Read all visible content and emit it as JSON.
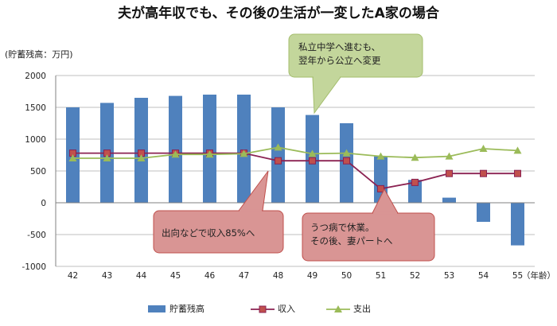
{
  "chart_data": {
    "type": "bar",
    "title": "夫が高年収でも、その後の生活が一変したA家の場合",
    "ylabel": "(貯蓄残高：万円)",
    "xunit": "（年齢）",
    "ylim": [
      -1000,
      2000
    ],
    "yticks": [
      -1000,
      -500,
      0,
      500,
      1000,
      1500,
      2000
    ],
    "categories": [
      "42",
      "43",
      "44",
      "45",
      "46",
      "47",
      "48",
      "49",
      "50",
      "51",
      "52",
      "53",
      "54",
      "55"
    ],
    "grid": true,
    "legend_position": "bottom",
    "series": [
      {
        "name": "貯蓄残高",
        "type": "bar",
        "color": "#4f81bd",
        "values": [
          1500,
          1570,
          1650,
          1680,
          1700,
          1700,
          1500,
          1380,
          1250,
          730,
          360,
          80,
          -300,
          -670
        ]
      },
      {
        "name": "収入",
        "type": "line",
        "color": "#8b2252",
        "marker": "square",
        "marker_color": "#c0504d",
        "values": [
          780,
          780,
          780,
          780,
          780,
          780,
          660,
          660,
          660,
          220,
          320,
          460,
          460,
          460
        ]
      },
      {
        "name": "支出",
        "type": "line",
        "color": "#9bbb59",
        "marker": "triangle",
        "marker_color": "#9bbb59",
        "values": [
          700,
          700,
          700,
          760,
          760,
          770,
          870,
          770,
          780,
          730,
          710,
          730,
          850,
          820
        ]
      }
    ],
    "annotations": [
      {
        "id": "green",
        "lines": [
          "私立中学へ進むも、",
          "翌年から公立へ変更"
        ],
        "color": "#c3d69b",
        "border": "#a4be6e",
        "category": "49"
      },
      {
        "id": "pink1",
        "lines": [
          "出向などで収入85%へ"
        ],
        "color": "#d99594",
        "border": "#c0504d",
        "category": "48"
      },
      {
        "id": "pink2",
        "lines": [
          "うつ病で休業。",
          "その後、妻パートへ"
        ],
        "color": "#d99594",
        "border": "#c0504d",
        "category": "51"
      }
    ]
  }
}
